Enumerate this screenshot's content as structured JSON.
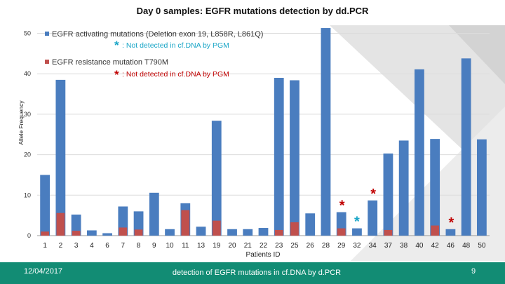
{
  "colors": {
    "blue": "#4a7dbf",
    "red": "#c0504d",
    "cyan": "#1ba6c7",
    "darkred": "#c00000",
    "footer": "#128c74"
  },
  "footer": {
    "date": "12/04/2017",
    "caption": "detection of EGFR mutations in cf.DNA by d.PCR",
    "page": "9"
  },
  "chart_data": {
    "type": "bar",
    "stacked": "overlay",
    "title": "Day 0 samples: EGFR mutations detection by dd.PCR",
    "xlabel": "Patients ID",
    "ylabel": "Allele Frequency",
    "ylim": [
      0,
      52
    ],
    "yticks": [
      0,
      10,
      20,
      30,
      40,
      50
    ],
    "grid": true,
    "categories": [
      "1",
      "2",
      "3",
      "4",
      "6",
      "7",
      "8",
      "9",
      "10",
      "11",
      "13",
      "19",
      "20",
      "21",
      "22",
      "23",
      "25",
      "26",
      "28",
      "29",
      "32",
      "34",
      "37",
      "38",
      "40",
      "42",
      "46",
      "48",
      "50"
    ],
    "series": [
      {
        "name": "EGFR activating mutations (Deletion exon 19, L858R, L861Q)",
        "values": [
          15,
          38.5,
          5.2,
          1.3,
          0.6,
          7.2,
          6,
          10.6,
          1.6,
          8,
          2.2,
          28.4,
          1.6,
          1.6,
          1.9,
          39,
          38.4,
          5.5,
          51.3,
          5.8,
          1.8,
          8.7,
          20.3,
          23.5,
          41.1,
          23.9,
          1.6,
          43.8,
          23.8
        ]
      },
      {
        "name": "EGFR resistance mutation T790M",
        "values": [
          1,
          5.6,
          1.2,
          0,
          0,
          2,
          1.5,
          0,
          0,
          6.3,
          0,
          3.7,
          0,
          0,
          0,
          1.4,
          3.3,
          0,
          0,
          1.8,
          0,
          0,
          1.4,
          0,
          0,
          2.5,
          0,
          0,
          0
        ]
      }
    ],
    "legend": [
      {
        "label": "EGFR activating mutations (Deletion exon 19, L858R, L861Q)",
        "note_star": "*",
        "note": ": Not detected in cf.DNA by PGM",
        "color": "blue",
        "star_color": "cyan"
      },
      {
        "label": "EGFR resistance mutation T790M",
        "note_star": "*",
        "note": ": Not detected in cf.DNA by PGM",
        "color": "red",
        "star_color": "darkred"
      }
    ],
    "markers": [
      {
        "category": "29",
        "series": 1,
        "symbol": "*",
        "color": "darkred"
      },
      {
        "category": "32",
        "series": 0,
        "symbol": "*",
        "color": "cyan"
      },
      {
        "category": "34",
        "series": 1,
        "symbol": "*",
        "color": "darkred"
      },
      {
        "category": "46",
        "series": 1,
        "symbol": "*",
        "color": "darkred"
      }
    ]
  }
}
